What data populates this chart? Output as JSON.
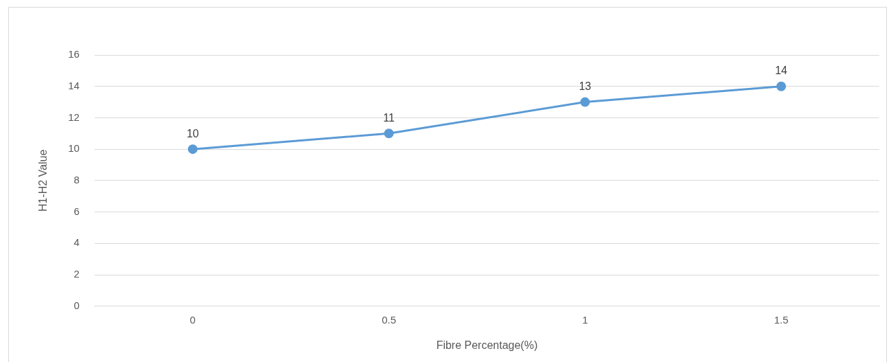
{
  "chart_data": {
    "type": "line",
    "xlabel": "Fibre Percentage(%)",
    "ylabel": "H1-H2 Value",
    "categories": [
      "0",
      "0.5",
      "1",
      "1.5"
    ],
    "series": [
      {
        "color": "#5b9bd5",
        "values": [
          10,
          11,
          13,
          14
        ]
      }
    ],
    "ylim": [
      0,
      16
    ],
    "yticks": [
      0,
      2,
      4,
      6,
      8,
      10,
      12,
      14,
      16
    ],
    "grid": "y",
    "legend": false,
    "marker": "circle",
    "line_style": "solid",
    "data_labels": true
  }
}
